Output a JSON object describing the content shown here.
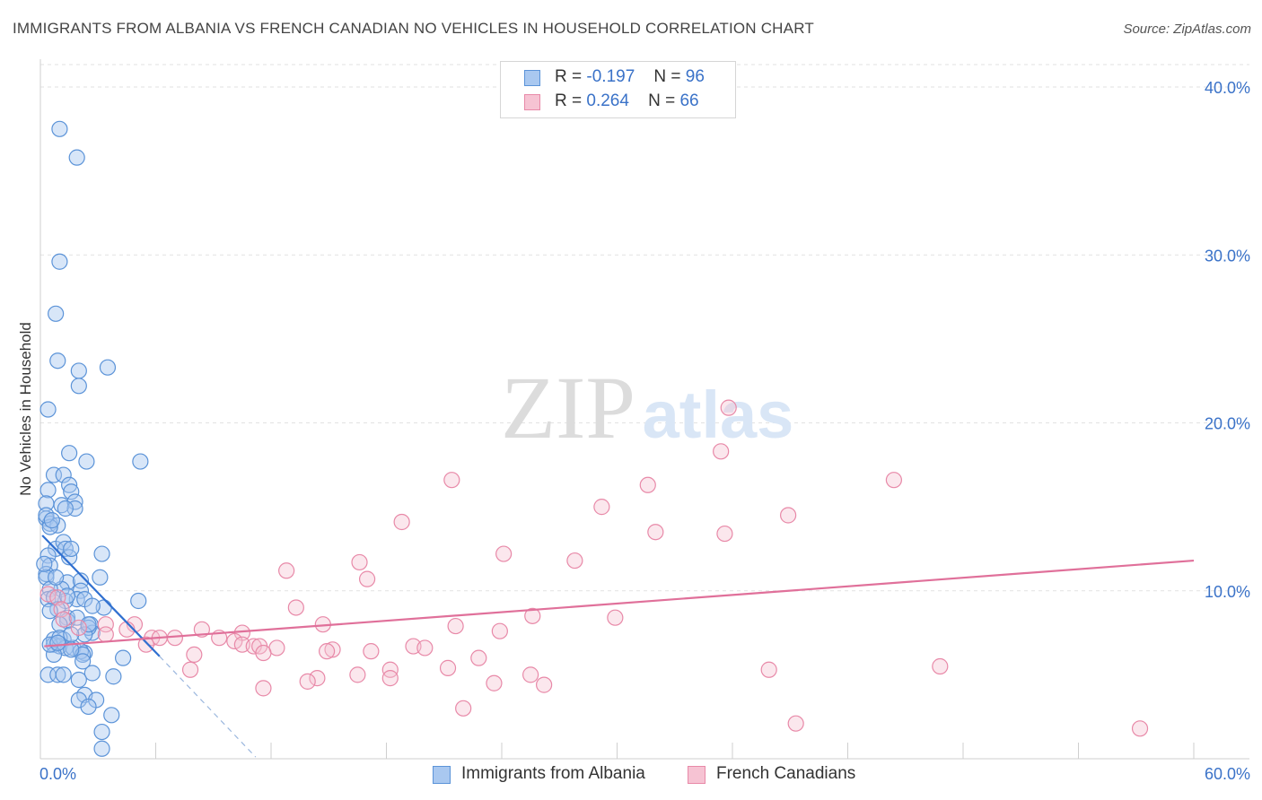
{
  "title": "IMMIGRANTS FROM ALBANIA VS FRENCH CANADIAN NO VEHICLES IN HOUSEHOLD CORRELATION CHART",
  "source": "Source: ZipAtlas.com",
  "watermark": {
    "zip": "ZIP",
    "atlas": "atlas"
  },
  "legend": {
    "r_label": "R =",
    "n_label": "N =",
    "series1": {
      "r": "-0.197",
      "n": "96"
    },
    "series2": {
      "r": "0.264",
      "n": "66"
    }
  },
  "colors": {
    "albania_fill": "#a9c8f0",
    "albania_stroke": "#5b93d8",
    "albania_line": "#2f6fd0",
    "french_fill": "#f6c3d3",
    "french_stroke": "#e889a8",
    "french_line": "#e0709a",
    "tick": "#3a72c8",
    "grid": "#e2e2e2"
  },
  "chart_data": {
    "type": "scatter",
    "title": "IMMIGRANTS FROM ALBANIA VS FRENCH CANADIAN NO VEHICLES IN HOUSEHOLD CORRELATION CHART",
    "xlabel": "",
    "ylabel": "No Vehicles in Household",
    "xlim": [
      0,
      60
    ],
    "ylim": [
      0,
      40
    ],
    "x_tick_labels": [
      "0.0%",
      "60.0%"
    ],
    "y_ticks": [
      10,
      20,
      30,
      40
    ],
    "y_tick_labels": [
      "10.0%",
      "20.0%",
      "30.0%",
      "40.0%"
    ],
    "grid": true,
    "series": [
      {
        "name": "Immigrants from Albania",
        "r": -0.197,
        "n": 96,
        "trend": {
          "x0": 0.1,
          "y0": 13.3,
          "x1": 6.2,
          "y1": 6.1,
          "dash_x1": 11.2,
          "dash_y1": 0.1
        },
        "points": [
          [
            1.0,
            37.5
          ],
          [
            1.9,
            35.8
          ],
          [
            1.0,
            29.6
          ],
          [
            0.8,
            26.5
          ],
          [
            0.9,
            23.7
          ],
          [
            2.0,
            23.1
          ],
          [
            3.5,
            23.3
          ],
          [
            2.0,
            22.2
          ],
          [
            0.4,
            20.8
          ],
          [
            1.5,
            18.2
          ],
          [
            2.4,
            17.7
          ],
          [
            5.2,
            17.7
          ],
          [
            0.7,
            16.9
          ],
          [
            1.2,
            16.9
          ],
          [
            1.5,
            16.3
          ],
          [
            0.4,
            16.0
          ],
          [
            1.6,
            15.9
          ],
          [
            0.3,
            15.2
          ],
          [
            1.1,
            15.1
          ],
          [
            1.8,
            15.3
          ],
          [
            1.8,
            14.9
          ],
          [
            0.3,
            14.3
          ],
          [
            1.3,
            14.9
          ],
          [
            0.5,
            14.0
          ],
          [
            0.9,
            13.9
          ],
          [
            0.5,
            13.8
          ],
          [
            0.3,
            14.5
          ],
          [
            0.8,
            12.5
          ],
          [
            1.2,
            12.9
          ],
          [
            1.3,
            12.5
          ],
          [
            0.4,
            12.1
          ],
          [
            1.5,
            12.0
          ],
          [
            3.2,
            12.2
          ],
          [
            0.5,
            11.5
          ],
          [
            0.3,
            11.0
          ],
          [
            0.3,
            10.8
          ],
          [
            1.4,
            10.5
          ],
          [
            2.1,
            10.6
          ],
          [
            3.1,
            10.8
          ],
          [
            1.1,
            10.1
          ],
          [
            2.1,
            10.0
          ],
          [
            0.5,
            10.1
          ],
          [
            1.9,
            9.5
          ],
          [
            0.4,
            9.5
          ],
          [
            1.3,
            9.4
          ],
          [
            0.7,
            9.6
          ],
          [
            2.3,
            9.5
          ],
          [
            5.1,
            9.4
          ],
          [
            3.3,
            9.0
          ],
          [
            0.9,
            8.9
          ],
          [
            1.4,
            8.4
          ],
          [
            1.4,
            8.2
          ],
          [
            1.0,
            8.0
          ],
          [
            2.6,
            8.0
          ],
          [
            2.7,
            7.5
          ],
          [
            2.5,
            7.8
          ],
          [
            0.7,
            7.1
          ],
          [
            1.2,
            7.1
          ],
          [
            2.3,
            7.4
          ],
          [
            0.7,
            6.8
          ],
          [
            1.0,
            6.7
          ],
          [
            1.3,
            6.6
          ],
          [
            1.7,
            6.6
          ],
          [
            2.3,
            6.3
          ],
          [
            0.7,
            6.2
          ],
          [
            2.1,
            6.4
          ],
          [
            2.2,
            6.2
          ],
          [
            4.3,
            6.0
          ],
          [
            2.2,
            5.8
          ],
          [
            0.4,
            5.0
          ],
          [
            0.9,
            5.0
          ],
          [
            1.2,
            5.0
          ],
          [
            2.7,
            5.1
          ],
          [
            3.8,
            4.9
          ],
          [
            2.0,
            4.7
          ],
          [
            2.3,
            3.8
          ],
          [
            2.0,
            3.5
          ],
          [
            2.9,
            3.5
          ],
          [
            2.5,
            3.1
          ],
          [
            3.7,
            2.6
          ],
          [
            3.2,
            1.6
          ],
          [
            3.2,
            0.6
          ],
          [
            0.5,
            6.8
          ],
          [
            1.9,
            8.4
          ],
          [
            1.0,
            7.2
          ],
          [
            0.8,
            10.8
          ],
          [
            1.6,
            12.5
          ],
          [
            0.2,
            11.6
          ],
          [
            1.6,
            6.5
          ],
          [
            2.7,
            9.1
          ],
          [
            0.6,
            14.2
          ],
          [
            1.4,
            9.7
          ],
          [
            0.9,
            6.9
          ],
          [
            2.5,
            8.0
          ],
          [
            0.5,
            8.8
          ],
          [
            1.6,
            7.4
          ]
        ]
      },
      {
        "name": "French Canadians",
        "r": 0.264,
        "n": 66,
        "trend": {
          "x0": 0.2,
          "y0": 6.7,
          "x1": 60.0,
          "y1": 11.8
        },
        "points": [
          [
            35.8,
            20.9
          ],
          [
            35.4,
            18.3
          ],
          [
            21.4,
            16.6
          ],
          [
            31.6,
            16.3
          ],
          [
            44.4,
            16.6
          ],
          [
            29.2,
            15.0
          ],
          [
            38.9,
            14.5
          ],
          [
            18.8,
            14.1
          ],
          [
            32.0,
            13.5
          ],
          [
            35.6,
            13.4
          ],
          [
            24.1,
            12.2
          ],
          [
            27.8,
            11.8
          ],
          [
            16.6,
            11.7
          ],
          [
            12.8,
            11.2
          ],
          [
            17.0,
            10.7
          ],
          [
            0.4,
            9.8
          ],
          [
            0.9,
            9.6
          ],
          [
            13.3,
            9.0
          ],
          [
            1.1,
            8.9
          ],
          [
            25.6,
            8.5
          ],
          [
            29.9,
            8.4
          ],
          [
            1.2,
            8.3
          ],
          [
            4.9,
            8.0
          ],
          [
            3.4,
            8.0
          ],
          [
            14.7,
            8.0
          ],
          [
            21.6,
            7.9
          ],
          [
            4.5,
            7.7
          ],
          [
            8.4,
            7.7
          ],
          [
            23.9,
            7.6
          ],
          [
            10.5,
            7.5
          ],
          [
            3.4,
            7.4
          ],
          [
            5.8,
            7.2
          ],
          [
            6.2,
            7.2
          ],
          [
            7.0,
            7.2
          ],
          [
            9.3,
            7.2
          ],
          [
            10.1,
            7.0
          ],
          [
            10.5,
            6.8
          ],
          [
            11.1,
            6.7
          ],
          [
            11.4,
            6.7
          ],
          [
            5.5,
            6.8
          ],
          [
            8.0,
            6.2
          ],
          [
            12.3,
            6.6
          ],
          [
            15.2,
            6.5
          ],
          [
            19.4,
            6.7
          ],
          [
            20.0,
            6.6
          ],
          [
            14.9,
            6.4
          ],
          [
            17.2,
            6.4
          ],
          [
            11.6,
            6.3
          ],
          [
            22.8,
            6.0
          ],
          [
            18.2,
            5.3
          ],
          [
            21.2,
            5.4
          ],
          [
            37.9,
            5.3
          ],
          [
            46.8,
            5.5
          ],
          [
            7.8,
            5.3
          ],
          [
            16.5,
            5.0
          ],
          [
            25.5,
            5.0
          ],
          [
            14.4,
            4.8
          ],
          [
            18.2,
            4.8
          ],
          [
            13.9,
            4.6
          ],
          [
            23.6,
            4.5
          ],
          [
            26.2,
            4.4
          ],
          [
            11.6,
            4.2
          ],
          [
            22.0,
            3.0
          ],
          [
            39.3,
            2.1
          ],
          [
            57.2,
            1.8
          ],
          [
            2.0,
            7.8
          ]
        ]
      }
    ]
  }
}
